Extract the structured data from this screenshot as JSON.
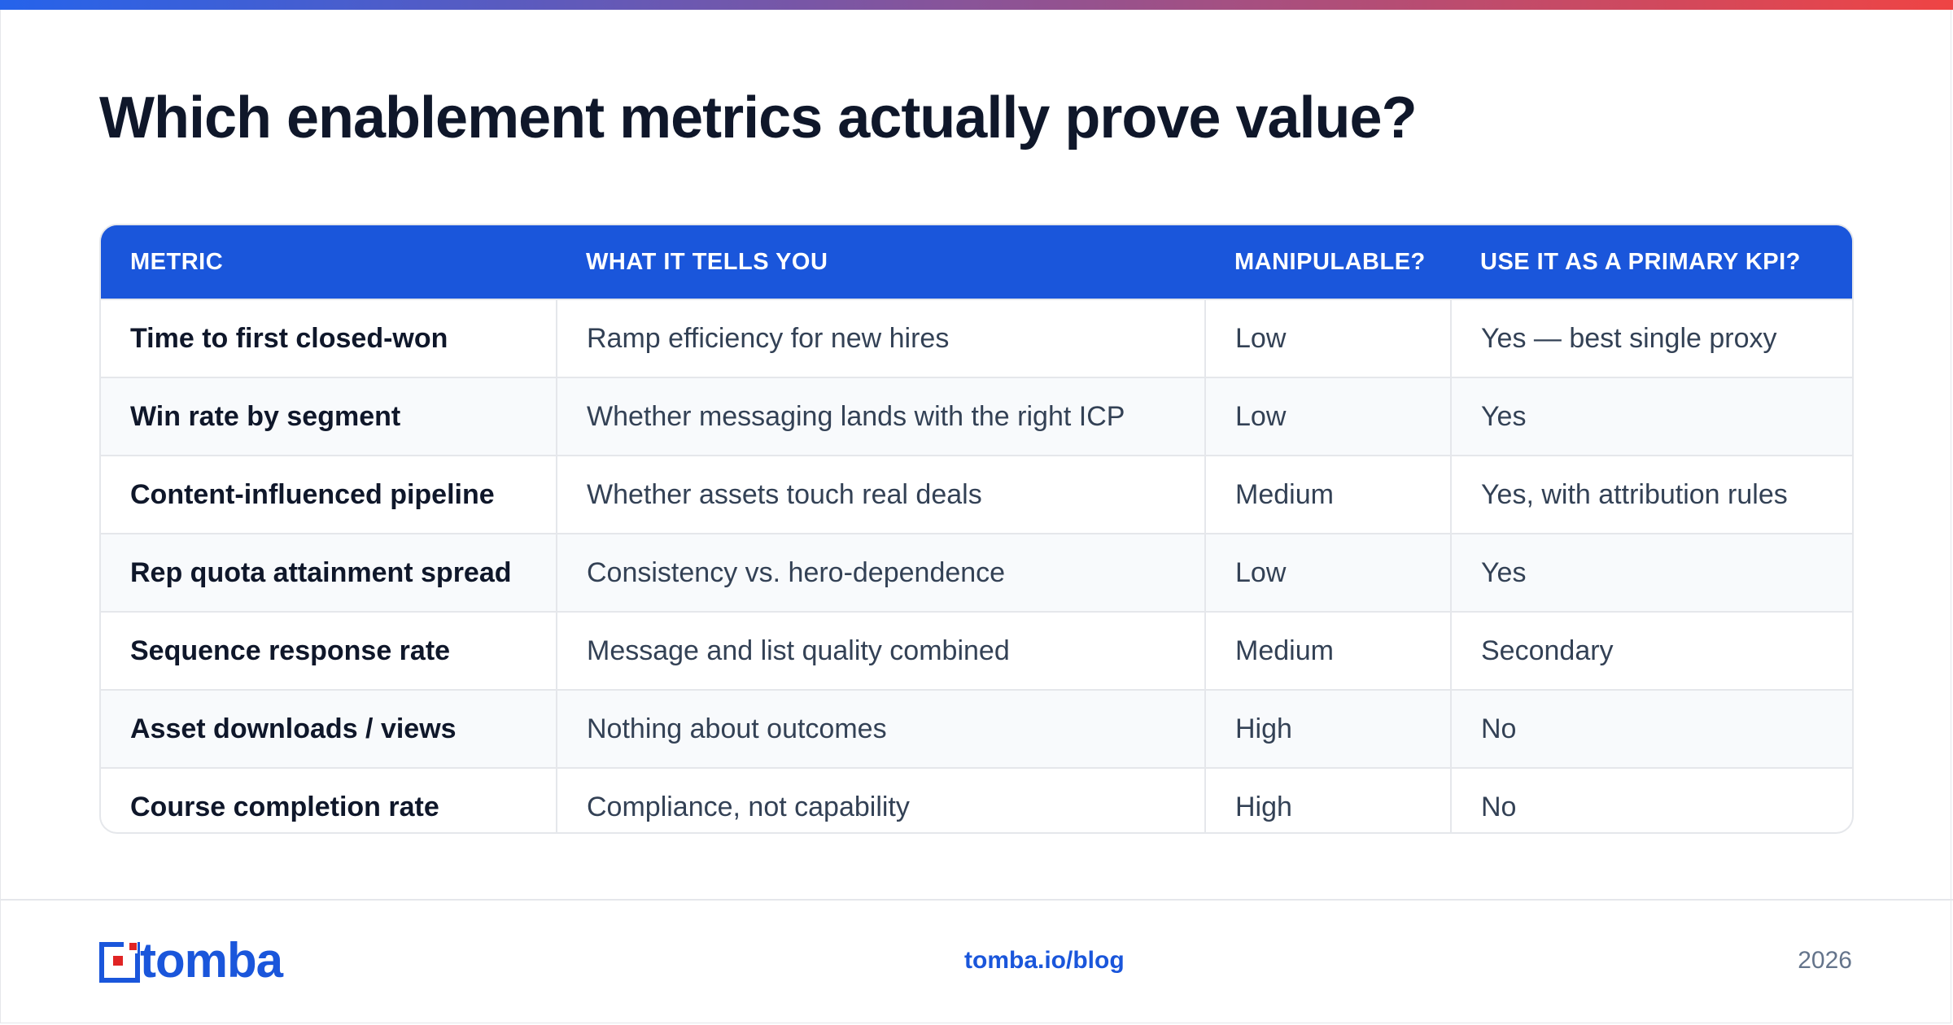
{
  "colors": {
    "accent": "#1a56db",
    "gradient_start": "#2563eb",
    "gradient_end": "#ef4444",
    "logo_red": "#e02424"
  },
  "title": "Which enablement metrics actually prove value?",
  "table": {
    "headers": [
      "METRIC",
      "WHAT IT TELLS YOU",
      "MANIPULABLE?",
      "USE IT AS A PRIMARY KPI?"
    ],
    "rows": [
      [
        "Time to first closed-won",
        "Ramp efficiency for new hires",
        "Low",
        "Yes — best single proxy"
      ],
      [
        "Win rate by segment",
        "Whether messaging lands with the right ICP",
        "Low",
        "Yes"
      ],
      [
        "Content-influenced pipeline",
        "Whether assets touch real deals",
        "Medium",
        "Yes, with attribution rules"
      ],
      [
        "Rep quota attainment spread",
        "Consistency vs. hero-dependence",
        "Low",
        "Yes"
      ],
      [
        "Sequence response rate",
        "Message and list quality combined",
        "Medium",
        "Secondary"
      ],
      [
        "Asset downloads / views",
        "Nothing about outcomes",
        "High",
        "No"
      ],
      [
        "Course completion rate",
        "Compliance, not capability",
        "High",
        "No"
      ]
    ]
  },
  "footer": {
    "logo_text": "tomba",
    "link": "tomba.io/blog",
    "year": "2026",
    "logo_icon": "tomba-logo-icon"
  }
}
